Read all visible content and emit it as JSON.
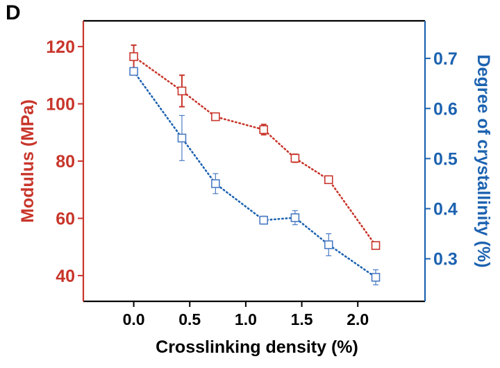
{
  "panel_label": "D",
  "colors": {
    "left": "#c8352a",
    "right": "#1c62b0",
    "right_marker": "#4a7bc4",
    "axis": "#000000"
  },
  "chart_data": {
    "type": "line",
    "panel": "D",
    "xlabel": "Crosslinking density (%)",
    "ylabel_left": "Modulus (MPa)",
    "ylabel_right": "Degree of crystallinity (%)",
    "xlim": [
      -0.45,
      2.6
    ],
    "ylim_left": [
      31,
      129
    ],
    "ylim_right": [
      0.215,
      0.775
    ],
    "x_ticks": [
      "0.0",
      "0.5",
      "1.0",
      "1.5",
      "2.0"
    ],
    "y_ticks_left": [
      "40",
      "60",
      "80",
      "100",
      "120"
    ],
    "y_ticks_right": [
      "0.3",
      "0.4",
      "0.5",
      "0.6",
      "0.7"
    ],
    "grid": false,
    "marker": "open-square",
    "line_style": "dotted",
    "series": [
      {
        "axis": "left",
        "x": [
          0.0,
          0.43,
          0.73,
          1.16,
          1.44,
          1.74,
          2.16
        ],
        "y": [
          116.5,
          104.5,
          95.5,
          91.0,
          81.0,
          73.5,
          50.5
        ],
        "err": [
          4.0,
          5.5,
          1.0,
          1.8,
          1.4,
          1.1,
          1.0
        ]
      },
      {
        "axis": "right",
        "x": [
          0.0,
          0.43,
          0.73,
          1.16,
          1.44,
          1.74,
          2.16
        ],
        "y": [
          0.674,
          0.541,
          0.45,
          0.377,
          0.382,
          0.328,
          0.263
        ],
        "err": [
          0.005,
          0.045,
          0.02,
          0.008,
          0.014,
          0.022,
          0.015
        ]
      }
    ]
  }
}
